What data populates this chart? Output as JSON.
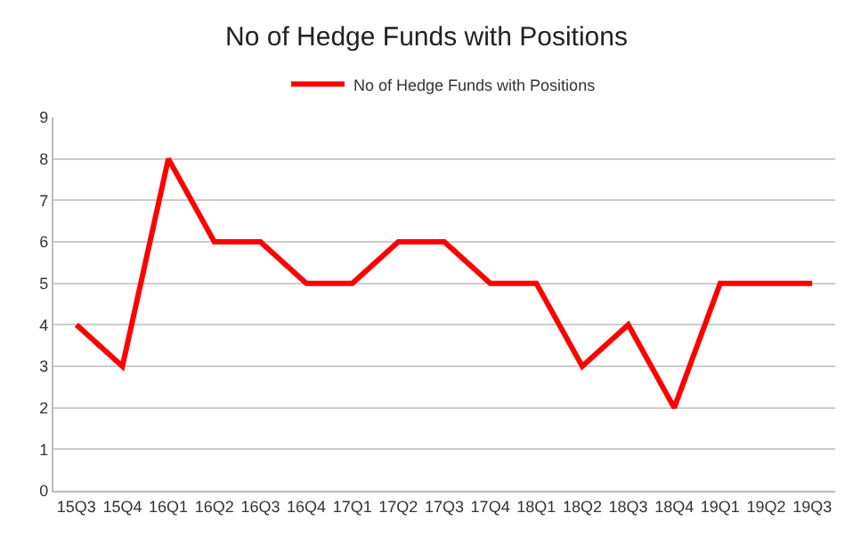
{
  "chart_data": {
    "type": "line",
    "title": "No of Hedge Funds with Positions",
    "categories": [
      "15Q3",
      "15Q4",
      "16Q1",
      "16Q2",
      "16Q3",
      "16Q4",
      "17Q1",
      "17Q2",
      "17Q3",
      "17Q4",
      "18Q1",
      "18Q2",
      "18Q3",
      "18Q4",
      "19Q1",
      "19Q2",
      "19Q3"
    ],
    "series": [
      {
        "name": "No of Hedge Funds with Positions",
        "color": "#ff0000",
        "values": [
          4,
          3,
          8,
          6,
          6,
          5,
          5,
          6,
          6,
          5,
          5,
          3,
          4,
          2,
          5,
          5,
          5
        ]
      }
    ],
    "ylim": [
      0,
      9
    ],
    "yticks": [
      0,
      1,
      2,
      3,
      4,
      5,
      6,
      7,
      8,
      9
    ],
    "grid": "y",
    "legend": "top",
    "marker": "none",
    "line_style": "solid"
  }
}
